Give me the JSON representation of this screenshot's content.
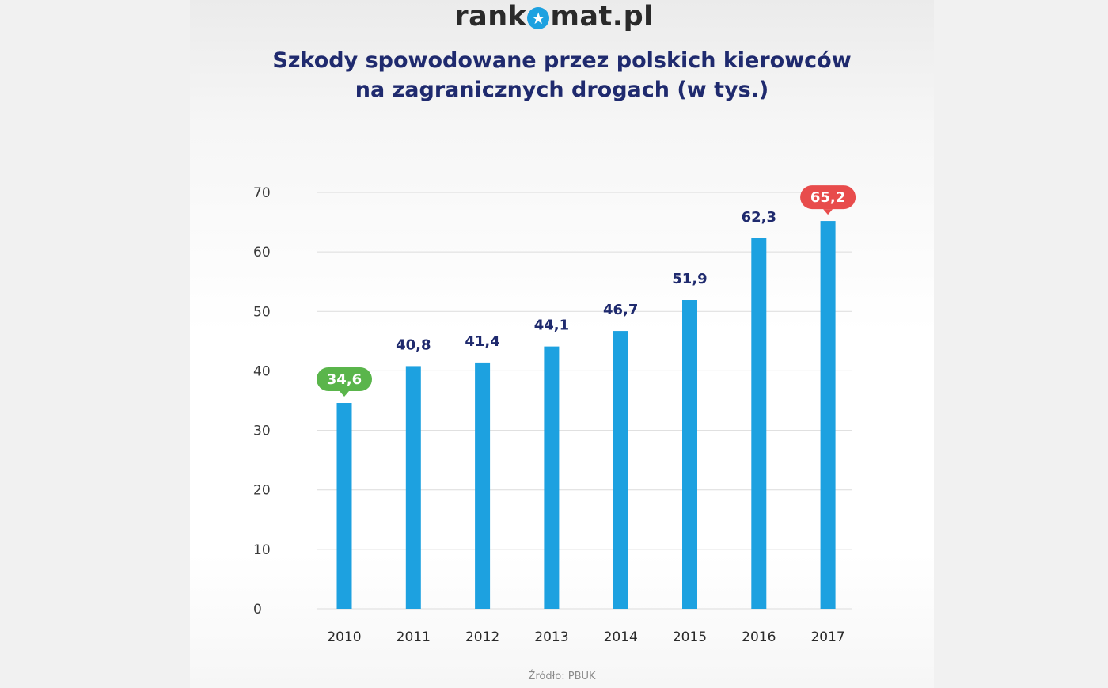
{
  "header": {
    "logo_left": "rank",
    "logo_right": "mat.pl",
    "logo_icon": "star-icon",
    "title_line1": "Szkody spowodowane przez polskich kierowców",
    "title_line2": "na zagranicznych drogach (w tys.)"
  },
  "footer": {
    "source": "Źródło: PBUK"
  },
  "colors": {
    "bar": "#1da1e0",
    "min_badge": "#5ab54b",
    "max_badge": "#e84c4c",
    "grid": "#dcdcdc",
    "label": "#1f2a6e"
  },
  "chart_data": {
    "type": "bar",
    "title": "Szkody spowodowane przez polskich kierowców na zagranicznych drogach (w tys.)",
    "xlabel": "",
    "ylabel": "",
    "categories": [
      "2010",
      "2011",
      "2012",
      "2013",
      "2014",
      "2015",
      "2016",
      "2017"
    ],
    "values": [
      34.6,
      40.8,
      41.4,
      44.1,
      46.7,
      51.9,
      62.3,
      65.2
    ],
    "value_labels": [
      "34,6",
      "40,8",
      "41,4",
      "44,1",
      "46,7",
      "51,9",
      "62,3",
      "65,2"
    ],
    "highlight": {
      "min_index": 0,
      "max_index": 7
    },
    "ylim": [
      0,
      70
    ],
    "yticks": [
      0,
      10,
      20,
      30,
      40,
      50,
      60,
      70
    ],
    "ytick_labels": [
      "0",
      "10",
      "20",
      "30",
      "40",
      "50",
      "60",
      "70"
    ],
    "grid": true
  }
}
